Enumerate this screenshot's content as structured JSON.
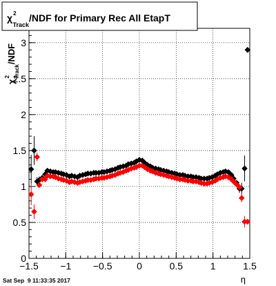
{
  "title": {
    "chi": "χ",
    "sup": "2",
    "sub": "Track",
    "rest": "/NDF for Primary Rec All EtapT"
  },
  "ylabel": {
    "chi": "χ",
    "sup": "2",
    "sub": "Track",
    "rest": "/NDF"
  },
  "xlabel": "η",
  "timestamp": "Sat Sep  9 11:33:35 2017",
  "chart_data": {
    "type": "scatter",
    "xlim": [
      -1.5,
      1.5
    ],
    "ylim": [
      0,
      3.2
    ],
    "grid": true,
    "x_ticks": [
      {
        "v": -1.5,
        "label": "−1.5"
      },
      {
        "v": -1,
        "label": "−1"
      },
      {
        "v": -0.5,
        "label": "−0.5"
      },
      {
        "v": 0,
        "label": "0"
      },
      {
        "v": 0.5,
        "label": "0.5"
      },
      {
        "v": 1,
        "label": "1"
      },
      {
        "v": 1.5,
        "label": "1.5"
      }
    ],
    "y_ticks": [
      {
        "v": 0,
        "label": "0"
      },
      {
        "v": 0.5,
        "label": "0.5"
      },
      {
        "v": 1,
        "label": "1"
      },
      {
        "v": 1.5,
        "label": "1.5"
      },
      {
        "v": 2,
        "label": "2"
      },
      {
        "v": 2.5,
        "label": "2.5"
      },
      {
        "v": 3,
        "label": "3"
      }
    ],
    "series": [
      {
        "color": "#000000",
        "x": [
          -1.47,
          -1.43,
          -1.39,
          -1.36,
          -1.32,
          -1.28,
          -1.25,
          -1.21,
          -1.17,
          -1.14,
          -1.1,
          -1.06,
          -1.03,
          -0.99,
          -0.95,
          -0.92,
          -0.88,
          -0.84,
          -0.81,
          -0.77,
          -0.73,
          -0.7,
          -0.66,
          -0.62,
          -0.59,
          -0.55,
          -0.51,
          -0.48,
          -0.44,
          -0.4,
          -0.37,
          -0.33,
          -0.29,
          -0.26,
          -0.22,
          -0.18,
          -0.15,
          -0.11,
          -0.07,
          -0.04,
          0,
          0.04,
          0.07,
          0.11,
          0.15,
          0.18,
          0.22,
          0.26,
          0.29,
          0.33,
          0.37,
          0.4,
          0.44,
          0.48,
          0.51,
          0.55,
          0.59,
          0.62,
          0.66,
          0.7,
          0.73,
          0.77,
          0.81,
          0.84,
          0.88,
          0.92,
          0.95,
          0.99,
          1.03,
          1.06,
          1.1,
          1.14,
          1.17,
          1.21,
          1.25,
          1.28,
          1.32,
          1.36,
          1.39,
          1.43,
          1.47
        ],
        "y": [
          1.24,
          1.5,
          1.07,
          1.09,
          1.12,
          1.17,
          1.22,
          1.21,
          1.2,
          1.2,
          1.19,
          1.18,
          1.17,
          1.16,
          1.14,
          1.15,
          1.14,
          1.13,
          1.15,
          1.16,
          1.17,
          1.18,
          1.18,
          1.19,
          1.19,
          1.19,
          1.2,
          1.2,
          1.21,
          1.22,
          1.23,
          1.24,
          1.26,
          1.27,
          1.28,
          1.29,
          1.31,
          1.32,
          1.33,
          1.35,
          1.37,
          1.36,
          1.33,
          1.3,
          1.28,
          1.26,
          1.25,
          1.24,
          1.23,
          1.22,
          1.21,
          1.2,
          1.19,
          1.18,
          1.17,
          1.16,
          1.16,
          1.15,
          1.14,
          1.14,
          1.13,
          1.13,
          1.12,
          1.11,
          1.11,
          1.11,
          1.12,
          1.13,
          1.15,
          1.17,
          1.19,
          1.2,
          1.21,
          1.2,
          1.16,
          1.11,
          1.05,
          0.97,
          0.97,
          1.25,
          2.9
        ],
        "err": [
          0.2,
          0.2,
          0.06,
          0.05,
          0.03,
          0.02,
          0.02,
          0.02,
          0.02,
          0.01,
          0.01,
          0.01,
          0.01,
          0.01,
          0.01,
          0.01,
          0.01,
          0.01,
          0.01,
          0.01,
          0.01,
          0.01,
          0.01,
          0.01,
          0.01,
          0.01,
          0.01,
          0.01,
          0.01,
          0.01,
          0.01,
          0.01,
          0.01,
          0.01,
          0.01,
          0.01,
          0.01,
          0.01,
          0.01,
          0.01,
          0.01,
          0.01,
          0.01,
          0.01,
          0.01,
          0.01,
          0.01,
          0.01,
          0.01,
          0.01,
          0.01,
          0.01,
          0.01,
          0.01,
          0.01,
          0.01,
          0.01,
          0.01,
          0.01,
          0.01,
          0.01,
          0.01,
          0.01,
          0.01,
          0.01,
          0.01,
          0.01,
          0.01,
          0.01,
          0.01,
          0.01,
          0.01,
          0.02,
          0.02,
          0.02,
          0.03,
          0.04,
          0.06,
          0.08,
          0.18,
          0
        ]
      },
      {
        "color": "#ff0000",
        "x": [
          -1.47,
          -1.43,
          -1.39,
          -1.36,
          -1.32,
          -1.28,
          -1.25,
          -1.21,
          -1.17,
          -1.14,
          -1.1,
          -1.06,
          -1.03,
          -0.99,
          -0.95,
          -0.92,
          -0.88,
          -0.84,
          -0.81,
          -0.77,
          -0.73,
          -0.7,
          -0.66,
          -0.62,
          -0.59,
          -0.55,
          -0.51,
          -0.48,
          -0.44,
          -0.4,
          -0.37,
          -0.33,
          -0.29,
          -0.26,
          -0.22,
          -0.18,
          -0.15,
          -0.11,
          -0.07,
          -0.04,
          0,
          0.04,
          0.07,
          0.11,
          0.15,
          0.18,
          0.22,
          0.26,
          0.29,
          0.33,
          0.37,
          0.4,
          0.44,
          0.48,
          0.51,
          0.55,
          0.59,
          0.62,
          0.66,
          0.7,
          0.73,
          0.77,
          0.81,
          0.84,
          0.88,
          0.92,
          0.95,
          0.99,
          1.03,
          1.06,
          1.1,
          1.14,
          1.17,
          1.21,
          1.25,
          1.28,
          1.32,
          1.36,
          1.39,
          1.43,
          1.47
        ],
        "y": [
          0.89,
          0.65,
          1.41,
          1.02,
          1.1,
          1.1,
          1.15,
          1.14,
          1.14,
          1.13,
          1.11,
          1.1,
          1.09,
          1.08,
          1.06,
          1.07,
          1.06,
          1.05,
          1.06,
          1.07,
          1.08,
          1.09,
          1.09,
          1.1,
          1.11,
          1.11,
          1.12,
          1.12,
          1.13,
          1.14,
          1.15,
          1.16,
          1.18,
          1.19,
          1.2,
          1.22,
          1.23,
          1.25,
          1.26,
          1.27,
          1.29,
          1.29,
          1.27,
          1.24,
          1.22,
          1.21,
          1.19,
          1.18,
          1.17,
          1.16,
          1.15,
          1.14,
          1.13,
          1.12,
          1.11,
          1.1,
          1.1,
          1.09,
          1.08,
          1.08,
          1.07,
          1.07,
          1.06,
          1.05,
          1.04,
          1.04,
          1.05,
          1.06,
          1.08,
          1.1,
          1.12,
          1.13,
          1.14,
          1.13,
          1.1,
          1.07,
          1.03,
          0.99,
          0.84,
          0.51,
          0.51
        ],
        "err": [
          0.15,
          0.1,
          0.06,
          0.04,
          0.03,
          0.02,
          0.02,
          0.02,
          0.01,
          0.01,
          0.01,
          0.01,
          0.01,
          0.01,
          0.01,
          0.01,
          0.01,
          0.01,
          0.01,
          0.01,
          0.01,
          0.01,
          0.01,
          0.01,
          0.01,
          0.01,
          0.01,
          0.01,
          0.01,
          0.01,
          0.01,
          0.01,
          0.01,
          0.01,
          0.01,
          0.01,
          0.01,
          0.01,
          0.01,
          0.01,
          0.01,
          0.01,
          0.01,
          0.01,
          0.01,
          0.01,
          0.01,
          0.01,
          0.01,
          0.01,
          0.01,
          0.01,
          0.01,
          0.01,
          0.01,
          0.01,
          0.01,
          0.01,
          0.01,
          0.01,
          0.01,
          0.01,
          0.01,
          0.01,
          0.01,
          0.01,
          0.01,
          0.01,
          0.01,
          0.01,
          0.01,
          0.01,
          0.01,
          0.01,
          0.02,
          0.02,
          0.03,
          0.04,
          0.06,
          0.08,
          0
        ]
      }
    ]
  }
}
